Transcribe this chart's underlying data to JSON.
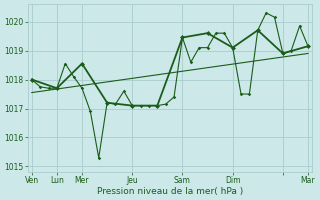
{
  "xlabel": "Pression niveau de la mer( hPa )",
  "bg_color": "#cce8e8",
  "grid_color": "#aacccc",
  "line_color": "#1a5c1a",
  "ylim": [
    1014.8,
    1020.6
  ],
  "yticks": [
    1015,
    1016,
    1017,
    1018,
    1019,
    1020
  ],
  "xlim": [
    0,
    34
  ],
  "tick_positions": [
    0.5,
    3.5,
    6.5,
    12.5,
    18.5,
    24.5,
    30.5,
    33.5
  ],
  "tick_labels": [
    "Ven",
    "Lun",
    "Mer",
    "Jeu",
    "Sam",
    "Dim",
    "",
    "Mar"
  ],
  "line1_x": [
    0.5,
    1.5,
    2.5,
    3.5,
    4.5,
    5.5,
    6.5,
    7.5,
    8.5,
    9.5,
    10.5,
    11.5,
    12.5,
    13.5,
    14.5,
    15.5,
    16.5,
    17.5,
    18.5,
    19.5,
    20.5,
    21.5,
    22.5,
    23.5,
    24.5,
    25.5,
    26.5,
    27.5,
    28.5,
    29.5,
    30.5,
    31.5,
    32.5,
    33.5
  ],
  "line1_y": [
    1018.0,
    1017.75,
    1017.7,
    1017.7,
    1018.55,
    1018.1,
    1017.7,
    1016.9,
    1015.3,
    1017.2,
    1017.15,
    1017.6,
    1017.1,
    1017.1,
    1017.1,
    1017.1,
    1017.15,
    1017.4,
    1019.45,
    1018.6,
    1019.1,
    1019.1,
    1019.6,
    1019.6,
    1019.1,
    1017.5,
    1017.5,
    1019.7,
    1020.3,
    1020.15,
    1018.9,
    1019.0,
    1019.85,
    1019.15
  ],
  "line2_x": [
    0.5,
    3.5,
    6.5,
    9.5,
    12.5,
    15.5,
    18.5,
    21.5,
    24.5,
    27.5,
    30.5,
    33.5
  ],
  "line2_y": [
    1018.0,
    1017.7,
    1018.55,
    1017.2,
    1017.1,
    1017.1,
    1019.45,
    1019.6,
    1019.1,
    1019.7,
    1018.9,
    1019.15
  ],
  "trend_x": [
    0.5,
    33.5
  ],
  "trend_y": [
    1017.55,
    1018.9
  ]
}
